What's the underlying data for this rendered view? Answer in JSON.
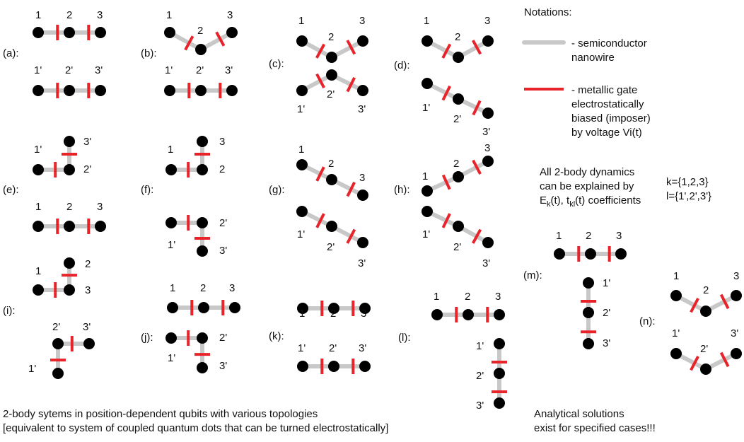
{
  "colors": {
    "wire": "#c8c8c8",
    "gate": "#e8232a",
    "dot": "#000000"
  },
  "notations": {
    "title": "Notations:",
    "wire_desc": [
      "- semiconductor",
      "nanowire"
    ],
    "gate_desc": [
      "- metallic gate",
      "electrostatically",
      "biased (imposer)",
      "by voltage Vi(t)"
    ]
  },
  "dynamics": {
    "line1": "All 2-body dynamics",
    "line2": "can be explained by",
    "line3_e": "E",
    "line3_e_sub": "k",
    "line3_mid": "(t), t",
    "line3_t_sub": "kl",
    "line3_end": "(t) coefficients",
    "k_set": "k={1,2,3}",
    "l_set": "l={1',2',3'}"
  },
  "caption": {
    "line1": "2-body sytems in position-dependent qubits with various topologies",
    "line2": "[equivalent to system of coupled quantum dots that can be turned electrostatically]"
  },
  "analytical": {
    "line1": "Analytical solutions",
    "line2": "exist for specified cases!!!"
  },
  "panels": {
    "a": "(a):",
    "b": "(b):",
    "c": "(c):",
    "d": "(d):",
    "e": "(e):",
    "f": "(f):",
    "g": "(g):",
    "h": "(h):",
    "i": "(i):",
    "j": "(j):",
    "k": "(k):",
    "l": "(l):",
    "m": "(m):",
    "n": "(n):"
  },
  "labels": {
    "a": [
      "1",
      "2",
      "3",
      "1'",
      "2'",
      "3'"
    ],
    "b": [
      "1",
      "2",
      "3",
      "1'",
      "2'",
      "3'"
    ],
    "c": [
      "1",
      "2",
      "3",
      "1'",
      "2'",
      "3'"
    ],
    "d": [
      "1",
      "2",
      "3",
      "1'",
      "2'",
      "3'"
    ],
    "e": [
      "1'",
      "2'",
      "3'",
      "1",
      "2",
      "3"
    ],
    "f": [
      "1",
      "2",
      "3",
      "1'",
      "2'",
      "3'"
    ],
    "g": [
      "1",
      "2",
      "3",
      "1'",
      "2'",
      "3'"
    ],
    "h": [
      "1",
      "2",
      "3",
      "1'",
      "2'",
      "3'"
    ],
    "i": [
      "1",
      "2",
      "3",
      "1'",
      "2'",
      "3'"
    ],
    "j": [
      "1",
      "2",
      "3",
      "1'",
      "2'",
      "3'"
    ],
    "k": [
      "1",
      "2",
      "3",
      "1'",
      "2'",
      "3'"
    ],
    "l": [
      "1",
      "2",
      "3",
      "1'",
      "2'",
      "3'"
    ],
    "m": [
      "1",
      "2",
      "3",
      "1'",
      "2'",
      "3'"
    ],
    "n": [
      "1",
      "2",
      "3",
      "1'",
      "2'",
      "3'"
    ]
  }
}
